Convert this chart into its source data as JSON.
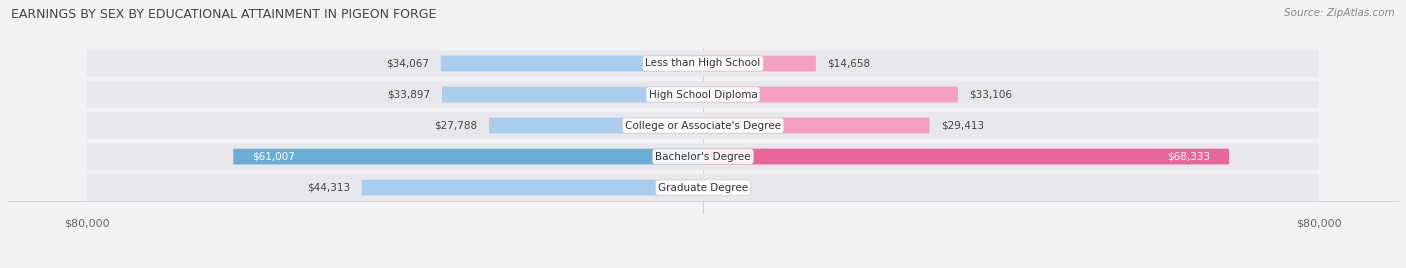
{
  "title": "EARNINGS BY SEX BY EDUCATIONAL ATTAINMENT IN PIGEON FORGE",
  "source": "Source: ZipAtlas.com",
  "categories": [
    "Less than High School",
    "High School Diploma",
    "College or Associate's Degree",
    "Bachelor's Degree",
    "Graduate Degree"
  ],
  "male_values": [
    34067,
    33897,
    27788,
    61007,
    44313
  ],
  "female_values": [
    14658,
    33106,
    29413,
    68333,
    0
  ],
  "male_color_dark": "#6aaed6",
  "male_color_light": "#aaccee",
  "female_color_dark": "#e8679a",
  "female_color_light": "#f5a0c0",
  "row_bg": "#e8e8ec",
  "max_value": 80000,
  "background_color": "#f2f2f4"
}
